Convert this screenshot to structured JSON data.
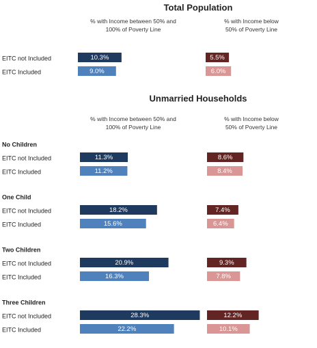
{
  "chart_data": {
    "type": "bar",
    "orientation": "horizontal",
    "sections": [
      {
        "title": "Total Population",
        "groups": [
          {
            "categories": [
              "EITC not Included",
              "EITC Included"
            ],
            "series": [
              {
                "name": "% with Income between 50% and\n100% of Poverty Line",
                "colors": [
                  "#1f3a5f",
                  "#4f81bd"
                ],
                "values": [
                  10.3,
                  9.0
                ],
                "value_labels": [
                  "10.3%",
                  "9.0%"
                ]
              },
              {
                "name": "% with Income below\n50% of Poverty Line",
                "colors": [
                  "#632523",
                  "#d99694"
                ],
                "values": [
                  5.5,
                  6.0
                ],
                "value_labels": [
                  "5.5%",
                  "6.0%"
                ]
              }
            ]
          }
        ]
      },
      {
        "title": "Unmarried Households",
        "groups": [
          {
            "label": "No Children",
            "categories": [
              "EITC not Included",
              "EITC Included"
            ],
            "series": [
              {
                "name": "% with Income between 50% and\n100% of Poverty Line",
                "colors": [
                  "#1f3a5f",
                  "#4f81bd"
                ],
                "values": [
                  11.3,
                  11.2
                ],
                "value_labels": [
                  "11.3%",
                  "11.2%"
                ]
              },
              {
                "name": "% with Income below\n50% of Poverty Line",
                "colors": [
                  "#632523",
                  "#d99694"
                ],
                "values": [
                  8.6,
                  8.4
                ],
                "value_labels": [
                  "8.6%",
                  "8.4%"
                ]
              }
            ]
          },
          {
            "label": "One Child",
            "categories": [
              "EITC not Included",
              "EITC Included"
            ],
            "series": [
              {
                "name": "% with Income between 50% and\n100% of Poverty Line",
                "colors": [
                  "#1f3a5f",
                  "#4f81bd"
                ],
                "values": [
                  18.2,
                  15.6
                ],
                "value_labels": [
                  "18.2%",
                  "15.6%"
                ]
              },
              {
                "name": "% with Income below\n50% of Poverty Line",
                "colors": [
                  "#632523",
                  "#d99694"
                ],
                "values": [
                  7.4,
                  6.4
                ],
                "value_labels": [
                  "7.4%",
                  "6.4%"
                ]
              }
            ]
          },
          {
            "label": "Two Children",
            "categories": [
              "EITC not Included",
              "EITC Included"
            ],
            "series": [
              {
                "name": "% with Income between 50% and\n100% of Poverty Line",
                "colors": [
                  "#1f3a5f",
                  "#4f81bd"
                ],
                "values": [
                  20.9,
                  16.3
                ],
                "value_labels": [
                  "20.9%",
                  "16.3%"
                ]
              },
              {
                "name": "% with Income below\n50% of Poverty Line",
                "colors": [
                  "#632523",
                  "#d99694"
                ],
                "values": [
                  9.3,
                  7.8
                ],
                "value_labels": [
                  "9.3%",
                  "7.8%"
                ]
              }
            ]
          },
          {
            "label": "Three Children",
            "categories": [
              "EITC not Included",
              "EITC Included"
            ],
            "series": [
              {
                "name": "% with Income between 50% and\n100% of Poverty Line",
                "colors": [
                  "#1f3a5f",
                  "#4f81bd"
                ],
                "values": [
                  28.3,
                  22.2
                ],
                "value_labels": [
                  "28.3%",
                  "22.2%"
                ]
              },
              {
                "name": "% with Income below\n50% of Poverty Line",
                "colors": [
                  "#632523",
                  "#d99694"
                ],
                "values": [
                  12.2,
                  10.1
                ],
                "value_labels": [
                  "12.2%",
                  "10.1%"
                ]
              }
            ]
          }
        ]
      }
    ]
  }
}
